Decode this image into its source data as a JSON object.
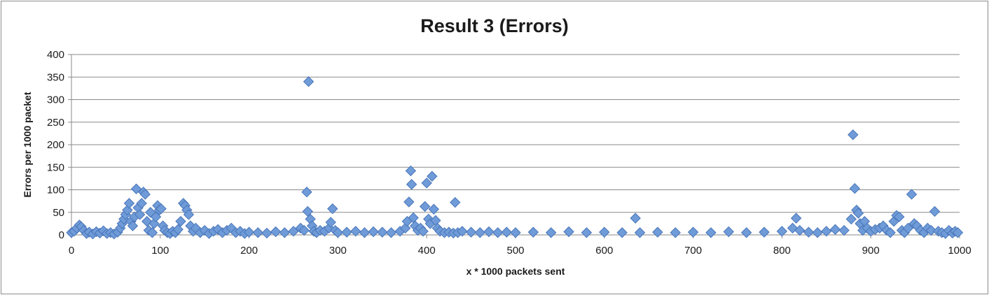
{
  "chart_data": {
    "type": "scatter",
    "title": "Result 3 (Errors)",
    "xlabel": "x * 1000 packets sent",
    "ylabel": "Errors per 1000 packet",
    "xlim": [
      0,
      1000
    ],
    "ylim": [
      0,
      400
    ],
    "x_ticks": [
      "0",
      "100",
      "200",
      "300",
      "400",
      "500",
      "600",
      "700",
      "800",
      "900",
      "1000"
    ],
    "y_ticks": [
      "0",
      "50",
      "100",
      "150",
      "200",
      "250",
      "300",
      "350",
      "400"
    ],
    "grid": "horizontal",
    "legend": "none",
    "marker": "diamond",
    "marker_color": "#6f9bd8",
    "marker_edge": "#4a76b8",
    "points": [
      [
        0,
        5
      ],
      [
        3,
        8
      ],
      [
        6,
        15
      ],
      [
        9,
        22
      ],
      [
        11,
        18
      ],
      [
        14,
        10
      ],
      [
        17,
        3
      ],
      [
        20,
        6
      ],
      [
        24,
        2
      ],
      [
        28,
        7
      ],
      [
        32,
        4
      ],
      [
        36,
        9
      ],
      [
        40,
        3
      ],
      [
        44,
        5
      ],
      [
        48,
        2
      ],
      [
        52,
        6
      ],
      [
        55,
        15
      ],
      [
        57,
        25
      ],
      [
        59,
        35
      ],
      [
        61,
        45
      ],
      [
        63,
        55
      ],
      [
        65,
        70
      ],
      [
        67,
        30
      ],
      [
        69,
        20
      ],
      [
        71,
        40
      ],
      [
        73,
        102
      ],
      [
        75,
        60
      ],
      [
        77,
        45
      ],
      [
        79,
        70
      ],
      [
        81,
        95
      ],
      [
        83,
        90
      ],
      [
        85,
        30
      ],
      [
        87,
        10
      ],
      [
        89,
        50
      ],
      [
        91,
        5
      ],
      [
        93,
        25
      ],
      [
        95,
        40
      ],
      [
        97,
        65
      ],
      [
        99,
        55
      ],
      [
        101,
        58
      ],
      [
        103,
        20
      ],
      [
        105,
        10
      ],
      [
        108,
        5
      ],
      [
        111,
        3
      ],
      [
        114,
        8
      ],
      [
        117,
        5
      ],
      [
        120,
        12
      ],
      [
        123,
        30
      ],
      [
        126,
        70
      ],
      [
        128,
        65
      ],
      [
        130,
        55
      ],
      [
        132,
        45
      ],
      [
        134,
        20
      ],
      [
        137,
        8
      ],
      [
        140,
        15
      ],
      [
        145,
        5
      ],
      [
        150,
        10
      ],
      [
        155,
        3
      ],
      [
        160,
        8
      ],
      [
        165,
        12
      ],
      [
        170,
        5
      ],
      [
        175,
        10
      ],
      [
        180,
        15
      ],
      [
        185,
        5
      ],
      [
        190,
        8
      ],
      [
        195,
        3
      ],
      [
        200,
        6
      ],
      [
        210,
        5
      ],
      [
        220,
        4
      ],
      [
        230,
        7
      ],
      [
        240,
        5
      ],
      [
        250,
        8
      ],
      [
        258,
        15
      ],
      [
        262,
        10
      ],
      [
        265,
        95
      ],
      [
        266,
        52
      ],
      [
        267,
        340
      ],
      [
        269,
        35
      ],
      [
        271,
        20
      ],
      [
        273,
        8
      ],
      [
        276,
        5
      ],
      [
        280,
        10
      ],
      [
        285,
        8
      ],
      [
        290,
        15
      ],
      [
        292,
        28
      ],
      [
        294,
        58
      ],
      [
        297,
        10
      ],
      [
        300,
        5
      ],
      [
        310,
        6
      ],
      [
        320,
        8
      ],
      [
        330,
        5
      ],
      [
        340,
        7
      ],
      [
        350,
        6
      ],
      [
        360,
        5
      ],
      [
        370,
        8
      ],
      [
        376,
        15
      ],
      [
        378,
        30
      ],
      [
        380,
        73
      ],
      [
        382,
        142
      ],
      [
        383,
        112
      ],
      [
        385,
        38
      ],
      [
        387,
        20
      ],
      [
        390,
        10
      ],
      [
        393,
        15
      ],
      [
        396,
        8
      ],
      [
        398,
        63
      ],
      [
        400,
        115
      ],
      [
        402,
        35
      ],
      [
        404,
        25
      ],
      [
        406,
        130
      ],
      [
        408,
        57
      ],
      [
        410,
        32
      ],
      [
        412,
        15
      ],
      [
        415,
        8
      ],
      [
        420,
        5
      ],
      [
        425,
        6
      ],
      [
        430,
        4
      ],
      [
        432,
        72
      ],
      [
        435,
        5
      ],
      [
        440,
        8
      ],
      [
        450,
        6
      ],
      [
        460,
        5
      ],
      [
        470,
        7
      ],
      [
        480,
        5
      ],
      [
        490,
        6
      ],
      [
        500,
        5
      ],
      [
        520,
        6
      ],
      [
        540,
        5
      ],
      [
        560,
        7
      ],
      [
        580,
        5
      ],
      [
        600,
        6
      ],
      [
        620,
        5
      ],
      [
        635,
        37
      ],
      [
        640,
        5
      ],
      [
        660,
        6
      ],
      [
        680,
        5
      ],
      [
        700,
        6
      ],
      [
        720,
        5
      ],
      [
        740,
        7
      ],
      [
        760,
        5
      ],
      [
        780,
        6
      ],
      [
        800,
        8
      ],
      [
        812,
        15
      ],
      [
        816,
        37
      ],
      [
        820,
        10
      ],
      [
        830,
        6
      ],
      [
        840,
        5
      ],
      [
        850,
        8
      ],
      [
        860,
        12
      ],
      [
        870,
        10
      ],
      [
        878,
        35
      ],
      [
        880,
        222
      ],
      [
        882,
        103
      ],
      [
        884,
        55
      ],
      [
        886,
        48
      ],
      [
        888,
        25
      ],
      [
        891,
        10
      ],
      [
        893,
        30
      ],
      [
        896,
        15
      ],
      [
        900,
        8
      ],
      [
        905,
        12
      ],
      [
        910,
        15
      ],
      [
        914,
        20
      ],
      [
        918,
        10
      ],
      [
        922,
        5
      ],
      [
        926,
        30
      ],
      [
        929,
        43
      ],
      [
        932,
        40
      ],
      [
        935,
        10
      ],
      [
        938,
        5
      ],
      [
        942,
        15
      ],
      [
        946,
        90
      ],
      [
        949,
        25
      ],
      [
        952,
        20
      ],
      [
        956,
        10
      ],
      [
        960,
        5
      ],
      [
        964,
        15
      ],
      [
        968,
        10
      ],
      [
        972,
        52
      ],
      [
        976,
        8
      ],
      [
        980,
        5
      ],
      [
        984,
        3
      ],
      [
        988,
        10
      ],
      [
        992,
        4
      ],
      [
        995,
        8
      ],
      [
        998,
        5
      ]
    ]
  }
}
